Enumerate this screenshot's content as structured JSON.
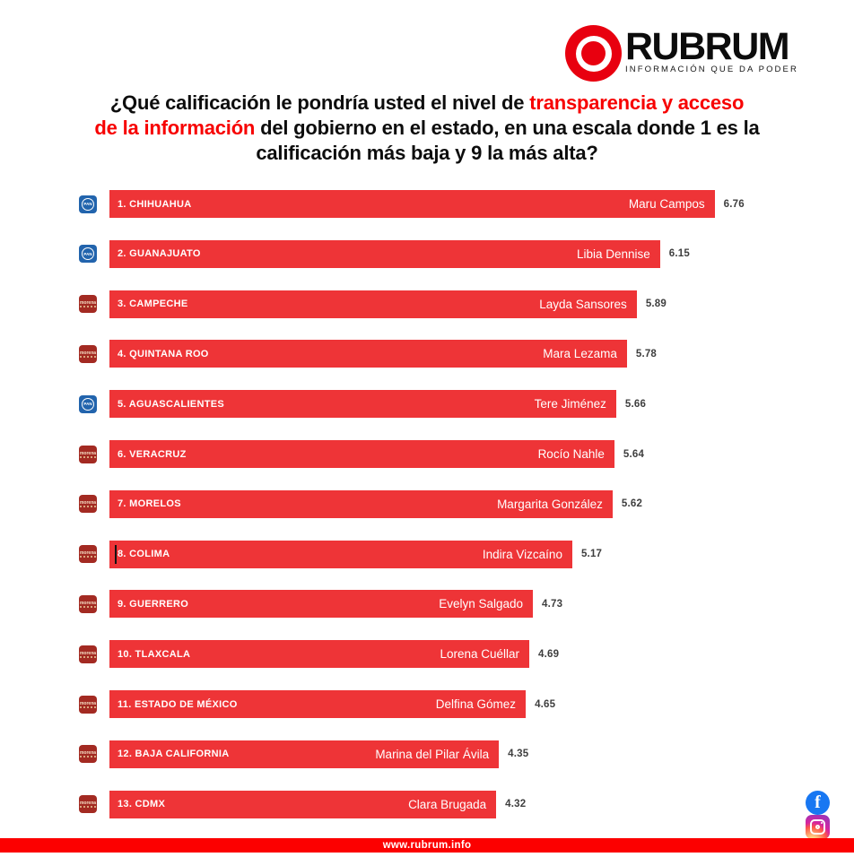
{
  "brand": {
    "name": "RUBRUM",
    "tagline": "INFORMACIÓN QUE DA PODER"
  },
  "title": {
    "full_text": "¿Qué calificación le pondría usted el nivel de transparencia y acceso de la información del gobierno en el estado, en una escala donde 1 es la calificación más baja y 9 la más alta?",
    "lines": [
      [
        {
          "text": "¿Qué calificación le pondría usted el nivel de ",
          "red": false
        },
        {
          "text": "transparencia y acceso",
          "red": true
        }
      ],
      [
        {
          "text": "de la información",
          "red": true
        },
        {
          "text": " del gobierno en el estado, en una escala donde 1 es la",
          "red": false
        }
      ],
      [
        {
          "text": "calificación más baja y 9 la más alta?",
          "red": false
        }
      ]
    ]
  },
  "chart_data": {
    "type": "bar",
    "orientation": "horizontal",
    "title": "¿Qué calificación le pondría usted el nivel de transparencia y acceso de la información del gobierno en el estado, en una escala donde 1 es la calificación más baja y 9 la más alta?",
    "value_range": [
      1,
      9
    ],
    "grid": false,
    "axis_visible": false,
    "value_labels_shown": true,
    "rows": [
      {
        "rank": 1,
        "state": "CHIHUAHUA",
        "governor": "Maru Campos",
        "value": 6.76,
        "party": "PAN",
        "party_label": "PAN"
      },
      {
        "rank": 2,
        "state": "GUANAJUATO",
        "governor": "Libia Dennise",
        "value": 6.15,
        "party": "PAN",
        "party_label": "PAN"
      },
      {
        "rank": 3,
        "state": "CAMPECHE",
        "governor": "Layda Sansores",
        "value": 5.89,
        "party": "MORENA",
        "party_label": "morena"
      },
      {
        "rank": 4,
        "state": "QUINTANA ROO",
        "governor": "Mara Lezama",
        "value": 5.78,
        "party": "MORENA",
        "party_label": "morena"
      },
      {
        "rank": 5,
        "state": "AGUASCALIENTES",
        "governor": "Tere Jiménez",
        "value": 5.66,
        "party": "PAN",
        "party_label": "PAN"
      },
      {
        "rank": 6,
        "state": "VERACRUZ",
        "governor": "Rocío Nahle",
        "value": 5.64,
        "party": "MORENA",
        "party_label": "morena"
      },
      {
        "rank": 7,
        "state": "MORELOS",
        "governor": "Margarita González",
        "value": 5.62,
        "party": "MORENA",
        "party_label": "morena"
      },
      {
        "rank": 8,
        "state": "COLIMA",
        "governor": "Indira Vizcaíno",
        "value": 5.17,
        "party": "MORENA",
        "party_label": "morena",
        "cursor_artifact": true
      },
      {
        "rank": 9,
        "state": "GUERRERO",
        "governor": "Evelyn Salgado",
        "value": 4.73,
        "party": "MORENA",
        "party_label": "morena"
      },
      {
        "rank": 10,
        "state": "TLAXCALA",
        "governor": "Lorena Cuéllar",
        "value": 4.69,
        "party": "MORENA",
        "party_label": "morena"
      },
      {
        "rank": 11,
        "state": "ESTADO DE MÉXICO",
        "governor": "Delfina Gómez",
        "value": 4.65,
        "party": "MORENA",
        "party_label": "morena"
      },
      {
        "rank": 12,
        "state": "BAJA CALIFORNIA",
        "governor": "Marina del Pilar Ávila",
        "value": 4.35,
        "party": "MORENA",
        "party_label": "morena"
      },
      {
        "rank": 13,
        "state": "CDMX",
        "governor": "Clara Brugada",
        "value": 4.32,
        "party": "MORENA",
        "party_label": "morena"
      }
    ]
  },
  "social": {
    "icons": [
      "facebook",
      "instagram"
    ]
  },
  "footer": {
    "url": "www.rubrum.info"
  },
  "colors": {
    "accent_red": "#f70000",
    "logo_red": "#e8000f",
    "bar_red": "#ee3437",
    "footer_red": "#fc0000",
    "pan_blue": "#2264ad",
    "morena_maroon": "#a32a22",
    "facebook_blue": "#1877f2"
  }
}
